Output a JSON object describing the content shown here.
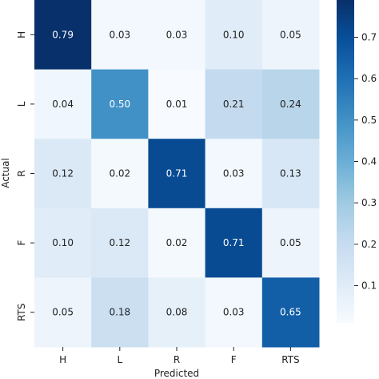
{
  "chart_data": {
    "type": "heatmap",
    "title": "",
    "xlabel": "Predicted",
    "ylabel": "Actual",
    "x_categories": [
      "H",
      "L",
      "R",
      "F",
      "RTS"
    ],
    "y_categories": [
      "H",
      "L",
      "R",
      "F",
      "RTS"
    ],
    "values": [
      [
        0.79,
        0.03,
        0.03,
        0.1,
        0.05
      ],
      [
        0.04,
        0.5,
        0.01,
        0.21,
        0.24
      ],
      [
        0.12,
        0.02,
        0.71,
        0.03,
        0.13
      ],
      [
        0.1,
        0.12,
        0.02,
        0.71,
        0.05
      ],
      [
        0.05,
        0.18,
        0.08,
        0.03,
        0.65
      ]
    ],
    "value_labels": [
      [
        "0.79",
        "0.03",
        "0.03",
        "0.10",
        "0.05"
      ],
      [
        "0.04",
        "0.50",
        "0.01",
        "0.21",
        "0.24"
      ],
      [
        "0.12",
        "0.02",
        "0.71",
        "0.03",
        "0.13"
      ],
      [
        "0.10",
        "0.12",
        "0.02",
        "0.71",
        "0.05"
      ],
      [
        "0.05",
        "0.18",
        "0.08",
        "0.03",
        "0.65"
      ]
    ],
    "colormap": "Blues",
    "colorbar": {
      "range": [
        0.01,
        0.79
      ],
      "tick_values": [
        0.1,
        0.2,
        0.3,
        0.4,
        0.5,
        0.6,
        0.7
      ],
      "tick_labels": [
        "0.1",
        "0.2",
        "0.3",
        "0.4",
        "0.5",
        "0.6",
        "0.7"
      ]
    },
    "colors": {
      "low": "#f7fbff",
      "high": "#08306b",
      "text_dark": "#222222",
      "text_light": "#ffffff"
    }
  }
}
